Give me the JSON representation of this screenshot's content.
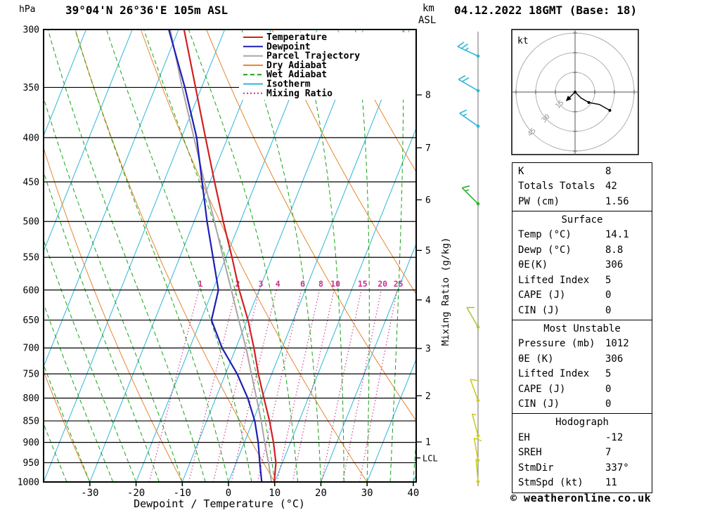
{
  "header": {
    "pressure_unit": "hPa",
    "title": "39°04'N 26°36'E 105m ASL",
    "km_label": "km",
    "asl_label": "ASL",
    "date_title": "04.12.2022 18GMT (Base: 18)"
  },
  "footer": {
    "xlabel": "Dewpoint / Temperature (°C)",
    "copyright": "© weatheronline.co.uk"
  },
  "legend": [
    {
      "label": "Temperature",
      "color": "#d22020",
      "dash": ""
    },
    {
      "label": "Dewpoint",
      "color": "#1e1eb4",
      "dash": ""
    },
    {
      "label": "Parcel Trajectory",
      "color": "#a6a6a6",
      "dash": ""
    },
    {
      "label": "Dry Adiabat",
      "color": "#e6862e",
      "dash": ""
    },
    {
      "label": "Wet Adiabat",
      "color": "#16a316",
      "dash": "6,4"
    },
    {
      "label": "Isotherm",
      "color": "#2eb6d8",
      "dash": ""
    },
    {
      "label": "Mixing Ratio",
      "color": "#cc3090",
      "dash": "2,3"
    }
  ],
  "chart_data": {
    "type": "line",
    "title": "39°04'N 26°36'E 105m ASL",
    "x_axis": {
      "label": "Dewpoint / Temperature (°C)",
      "ticks": [
        -30,
        -20,
        -10,
        0,
        10,
        20,
        30,
        40
      ],
      "range": [
        -40,
        40
      ]
    },
    "y_axis": {
      "label": "hPa",
      "scale": "log",
      "ticks": [
        300,
        350,
        400,
        450,
        500,
        550,
        600,
        650,
        700,
        750,
        800,
        850,
        900,
        950,
        1000
      ]
    },
    "km_axis": {
      "label_km": "km",
      "label_asl": "ASL",
      "ticks": [
        {
          "km": 1,
          "p": 899
        },
        {
          "km": 2,
          "p": 795
        },
        {
          "km": 3,
          "p": 701
        },
        {
          "km": 4,
          "p": 616
        },
        {
          "km": 5,
          "p": 540
        },
        {
          "km": 6,
          "p": 472
        },
        {
          "km": 7,
          "p": 411
        },
        {
          "km": 8,
          "p": 357
        }
      ],
      "lcl": {
        "label": "LCL",
        "p": 938
      }
    },
    "mixing_ratio": {
      "axis_label": "Mixing Ratio (g/kg)",
      "values": [
        1,
        2,
        3,
        4,
        6,
        8,
        10,
        15,
        20,
        25
      ]
    },
    "series": [
      {
        "name": "Temperature",
        "color": "#d22020",
        "width": 2.2,
        "pressure": [
          1000,
          950,
          900,
          850,
          800,
          750,
          700,
          650,
          600,
          550,
          500,
          450,
          400,
          350,
          300
        ],
        "values": [
          9.9,
          8.6,
          6.3,
          3.6,
          0.4,
          -2.9,
          -6.1,
          -9.8,
          -14.3,
          -18.7,
          -23.7,
          -29.0,
          -34.8,
          -41.3,
          -48.8
        ]
      },
      {
        "name": "Dewpoint",
        "color": "#1e1eb4",
        "width": 2.2,
        "pressure": [
          1000,
          950,
          900,
          850,
          800,
          750,
          700,
          650,
          600,
          550,
          500,
          450,
          400,
          350,
          300
        ],
        "values": [
          7.2,
          5.1,
          3.0,
          0.4,
          -3.1,
          -7.5,
          -13.0,
          -17.7,
          -18.8,
          -22.8,
          -27.2,
          -31.7,
          -36.7,
          -43.6,
          -52.1
        ]
      },
      {
        "name": "Parcel Trajectory",
        "color": "#a6a6a6",
        "width": 2,
        "pressure": [
          1000,
          950,
          900,
          850,
          800,
          750,
          700,
          650,
          600,
          550,
          500,
          450,
          400,
          350,
          300
        ],
        "values": [
          9.3,
          7.0,
          4.4,
          1.8,
          -1.2,
          -4.4,
          -7.8,
          -11.8,
          -16.0,
          -20.6,
          -25.6,
          -31.2,
          -37.3,
          -44.2,
          -51.8
        ]
      }
    ],
    "background": {
      "isotherm": {
        "color": "#2eb6d8",
        "step_c": 10
      },
      "dry_adiabat": {
        "color": "#e6862e",
        "step_c": 20
      },
      "wet_adiabat": {
        "color": "#16a316",
        "step_c": 5
      },
      "mixing_ratio": {
        "color": "#cc3090"
      }
    }
  },
  "wind_barbs": [
    {
      "p": 322,
      "dir": 295,
      "speed_kt": 25,
      "color": "#2eb6d8"
    },
    {
      "p": 353,
      "dir": 300,
      "speed_kt": 20,
      "color": "#2eb6d8"
    },
    {
      "p": 388,
      "dir": 305,
      "speed_kt": 15,
      "color": "#2eb6d8"
    },
    {
      "p": 477,
      "dir": 315,
      "speed_kt": 15,
      "color": "#30b030"
    },
    {
      "p": 662,
      "dir": 330,
      "speed_kt": 10,
      "color": "#a8c838"
    },
    {
      "p": 805,
      "dir": 340,
      "speed_kt": 10,
      "color": "#cccc22"
    },
    {
      "p": 884,
      "dir": 345,
      "speed_kt": 5,
      "color": "#cccc22"
    },
    {
      "p": 944,
      "dir": 350,
      "speed_kt": 10,
      "color": "#cccc22"
    },
    {
      "p": 999,
      "dir": 355,
      "speed_kt": 5,
      "color": "#cccc22"
    }
  ],
  "hodograph": {
    "unit_label": "kt",
    "rings_kt": [
      15,
      30,
      45
    ],
    "trace_uv_kt": [
      [
        0,
        0
      ],
      [
        4.5,
        4.5
      ],
      [
        10.5,
        8
      ],
      [
        18.5,
        9.5
      ],
      [
        26.5,
        14
      ]
    ],
    "dot_indices": [
      0,
      2,
      4
    ],
    "storm_arrow_uv_kt": [
      -6.5,
      6.5
    ]
  },
  "table": {
    "sections": [
      {
        "title": "",
        "rows": [
          {
            "label": "K",
            "value": "8"
          },
          {
            "label": "Totals Totals",
            "value": "42"
          },
          {
            "label": "PW (cm)",
            "value": "1.56"
          }
        ]
      },
      {
        "title": "Surface",
        "rows": [
          {
            "label": "Temp (°C)",
            "value": "14.1"
          },
          {
            "label": "Dewp (°C)",
            "value": "8.8"
          },
          {
            "label": "θE(K)",
            "value": "306"
          },
          {
            "label": "Lifted Index",
            "value": "5"
          },
          {
            "label": "CAPE (J)",
            "value": "0"
          },
          {
            "label": "CIN (J)",
            "value": "0"
          }
        ]
      },
      {
        "title": "Most Unstable",
        "rows": [
          {
            "label": "Pressure (mb)",
            "value": "1012"
          },
          {
            "label": "θE (K)",
            "value": "306"
          },
          {
            "label": "Lifted Index",
            "value": "5"
          },
          {
            "label": "CAPE (J)",
            "value": "0"
          },
          {
            "label": "CIN (J)",
            "value": "0"
          }
        ]
      },
      {
        "title": "Hodograph",
        "rows": [
          {
            "label": "EH",
            "value": "-12"
          },
          {
            "label": "SREH",
            "value": "7"
          },
          {
            "label": "StmDir",
            "value": "337°"
          },
          {
            "label": "StmSpd (kt)",
            "value": "11"
          }
        ]
      }
    ]
  }
}
